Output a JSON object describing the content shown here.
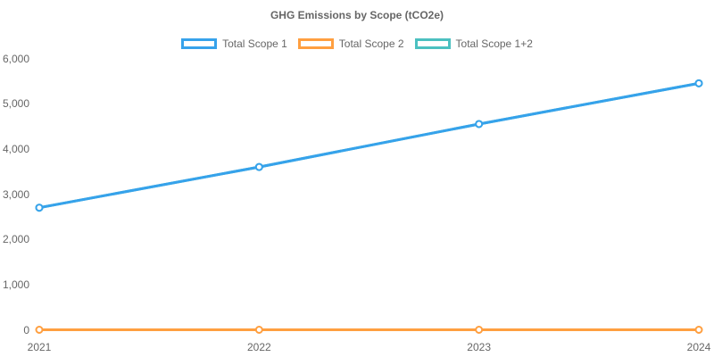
{
  "chart_data": {
    "type": "line",
    "title": "GHG Emissions by Scope (tCO2e)",
    "x": [
      "2021",
      "2022",
      "2023",
      "2024"
    ],
    "series": [
      {
        "name": "Total Scope 1",
        "color": "#36a2eb",
        "values": [
          2700,
          3600,
          4550,
          5450
        ]
      },
      {
        "name": "Total Scope 2",
        "color": "#ff9f40",
        "values": [
          0,
          0,
          0,
          0
        ]
      },
      {
        "name": "Total Scope 1+2",
        "color": "#4bc0c0",
        "values": [
          2700,
          3600,
          4550,
          5450
        ]
      }
    ],
    "ylim": [
      0,
      6000
    ],
    "ytick_values": [
      0,
      1000,
      2000,
      3000,
      4000,
      5000,
      6000
    ],
    "ytick_labels": [
      "0",
      "1,000",
      "2,000",
      "3,000",
      "4,000",
      "5,000",
      "6,000"
    ],
    "grid": false,
    "legend_position": "top",
    "text_color": "#666666",
    "background_color": "#ffffff"
  }
}
